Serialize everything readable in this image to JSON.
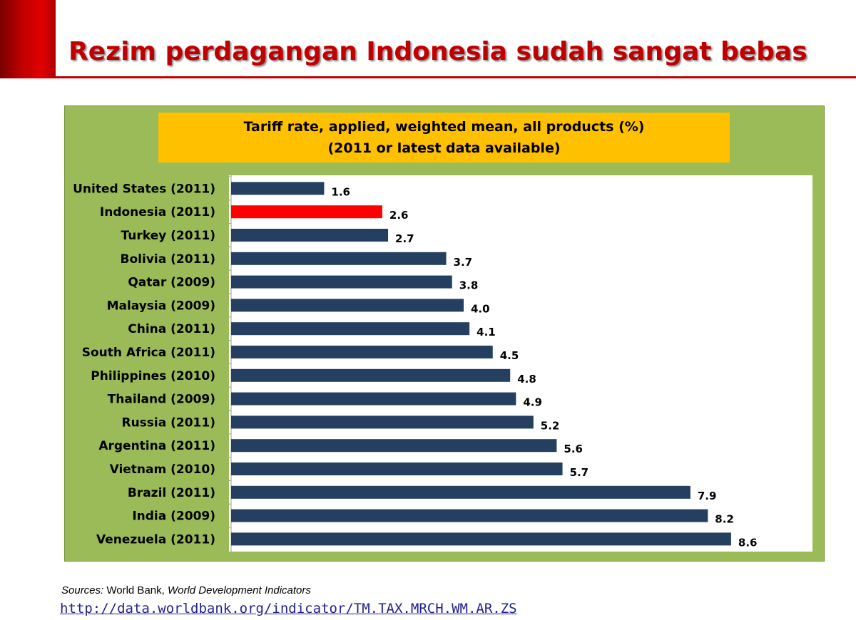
{
  "slide": {
    "title": "Rezim perdagangan Indonesia sudah sangat bebas"
  },
  "colors": {
    "accent": "#c00000",
    "chart_background": "#9bbb59",
    "title_box": "#ffc000",
    "bar": "#243f60",
    "highlight_bar": "#ff0000"
  },
  "chart_data": {
    "type": "bar",
    "orientation": "horizontal",
    "title": "Tariff rate, applied,  weighted mean, all products (%)",
    "subtitle": "(2011 or latest data available)",
    "categories": [
      "United States (2011)",
      "Indonesia (2011)",
      "Turkey (2011)",
      "Bolivia (2011)",
      "Qatar (2009)",
      "Malaysia (2009)",
      "China (2011)",
      "South Africa (2011)",
      "Philippines (2010)",
      "Thailand (2009)",
      "Russia (2011)",
      "Argentina (2011)",
      "Vietnam (2010)",
      "Brazil (2011)",
      "India (2009)",
      "Venezuela (2011)"
    ],
    "values": [
      1.6,
      2.6,
      2.7,
      3.7,
      3.8,
      4.0,
      4.1,
      4.5,
      4.8,
      4.9,
      5.2,
      5.6,
      5.7,
      7.9,
      8.2,
      8.6
    ],
    "value_labels": [
      "1.6",
      "2.6",
      "2.7",
      "3.7",
      "3.8",
      "4.0",
      "4.1",
      "4.5",
      "4.8",
      "4.9",
      "5.2",
      "5.6",
      "5.7",
      "7.9",
      "8.2",
      "8.6"
    ],
    "highlight": "Indonesia (2011)",
    "xlim": [
      0,
      10
    ],
    "grid": false,
    "legend": "none"
  },
  "sources": {
    "prefix": "Sources:",
    "org": " World Bank, ",
    "publication": "World Development Indicators",
    "url": "http://data.worldbank.org/indicator/TM.TAX.MRCH.WM.AR.ZS"
  }
}
